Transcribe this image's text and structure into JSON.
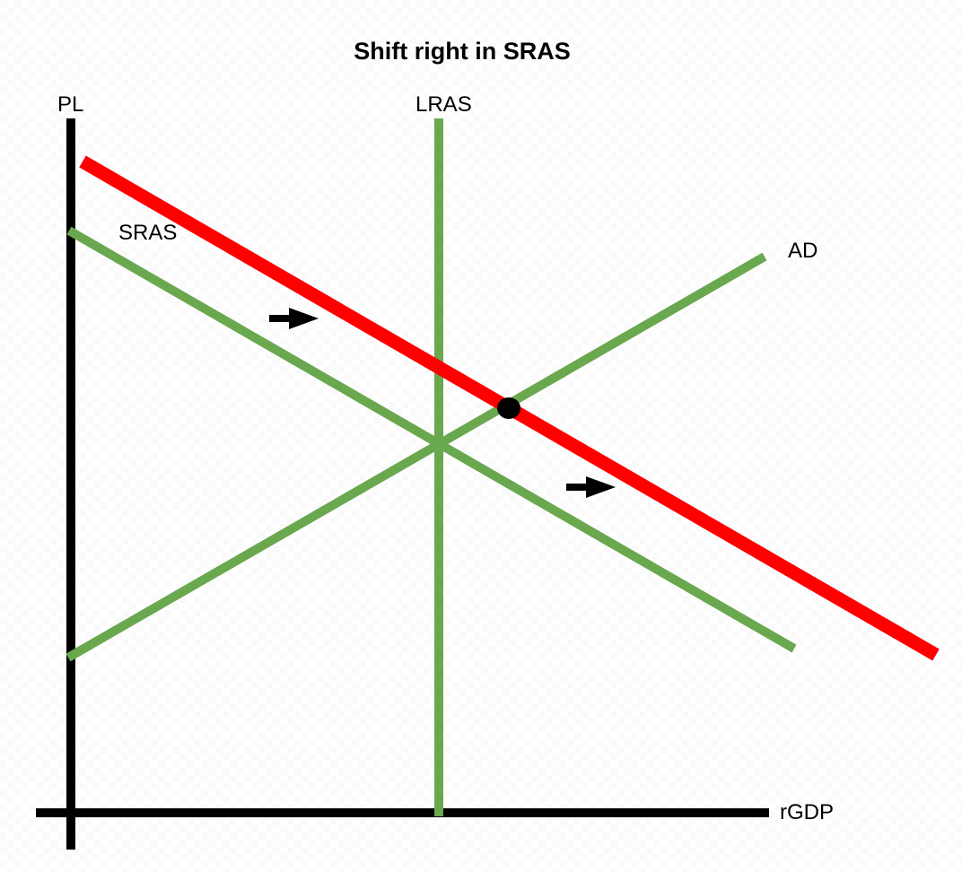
{
  "title": "Shift right in SRAS",
  "axes": {
    "y_label": "PL",
    "x_label": "rGDP"
  },
  "curves": {
    "lras": {
      "label": "LRAS",
      "color": "#6aa84f"
    },
    "sras": {
      "label": "SRAS",
      "color": "#6aa84f"
    },
    "sras_shifted": {
      "label": "",
      "color": "#ff0000"
    },
    "ad": {
      "label": "AD",
      "color": "#6aa84f"
    }
  },
  "annotations": {
    "shift_direction": "right",
    "new_equilibrium_marker": "dot"
  }
}
